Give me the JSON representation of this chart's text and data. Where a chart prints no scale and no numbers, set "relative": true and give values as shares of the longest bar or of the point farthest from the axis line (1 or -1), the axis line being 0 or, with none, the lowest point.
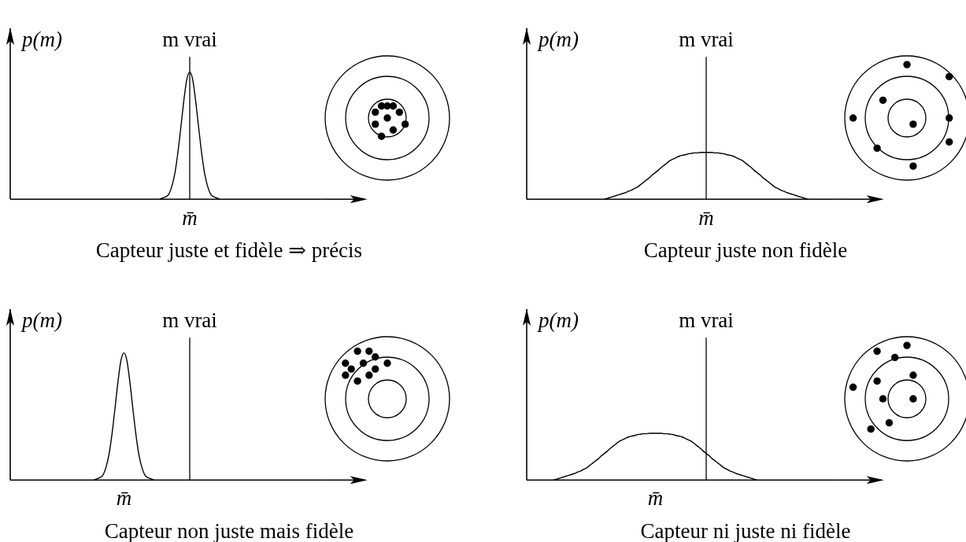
{
  "chart_data": [
    {
      "type": "line",
      "title": "Capteur juste et fidèle ⇒ précis",
      "ylabel": "p(m)",
      "relative": true,
      "marker": "none",
      "line_style": "solid",
      "annotations": [
        "m vrai",
        "m̄"
      ],
      "categories": [
        null,
        null,
        null,
        null,
        null,
        null,
        null,
        null,
        null,
        null,
        null,
        null,
        null,
        null,
        null,
        null,
        null,
        null,
        null,
        null,
        null,
        null,
        null,
        null,
        null,
        null,
        null,
        null,
        null,
        null,
        null,
        null,
        null,
        null,
        null,
        null,
        null,
        null,
        null,
        null,
        null,
        null,
        null,
        null,
        null,
        null,
        null,
        null,
        null,
        null,
        null,
        null,
        null,
        null,
        null,
        null,
        null,
        null,
        null,
        null,
        null,
        null,
        null,
        null,
        null,
        null,
        null,
        null,
        null,
        null,
        null,
        null,
        null,
        null,
        null,
        null,
        null,
        null,
        null,
        null,
        null,
        null,
        null,
        null,
        null,
        null,
        null,
        null,
        null,
        null,
        null,
        null,
        null,
        null,
        null,
        null,
        null,
        null,
        null,
        null,
        null,
        null,
        null,
        null,
        null
      ],
      "series": [
        {
          "color": "#000000",
          "values": [
            null,
            null,
            null,
            null,
            null,
            null,
            null,
            null,
            null,
            null,
            null,
            null,
            null,
            null,
            null,
            null,
            null,
            null,
            null,
            null,
            null,
            null,
            null,
            null,
            null,
            null,
            null,
            null,
            null,
            null,
            null,
            null,
            null,
            null,
            null,
            null,
            null,
            null,
            null,
            null,
            null,
            null,
            null,
            null,
            null,
            null,
            null,
            null,
            null,
            null,
            0,
            0.01,
            0.02,
            0.04,
            0.1,
            0.2,
            0.36,
            0.56,
            0.77,
            0.94,
            1,
            0.94,
            0.77,
            0.56,
            0.36,
            0.2,
            0.1,
            0.04,
            0.02,
            0.01,
            0,
            null,
            null,
            null,
            null,
            null,
            null,
            null,
            null,
            null,
            null,
            null,
            null,
            null,
            null,
            null,
            null,
            null,
            null,
            null,
            null,
            null,
            null,
            null,
            null,
            null,
            null,
            null,
            null,
            null,
            null,
            null,
            null,
            null,
            null
          ]
        }
      ]
    },
    {
      "type": "line",
      "title": "Capteur juste non fidèle",
      "ylabel": "p(m)",
      "relative": true,
      "marker": "none",
      "line_style": "solid",
      "annotations": [
        "m vrai",
        "m̄"
      ],
      "categories": [
        null,
        null,
        null,
        null,
        null,
        null,
        null,
        null,
        null,
        null,
        null,
        null,
        null,
        null,
        null,
        null,
        null,
        null,
        null,
        null,
        null,
        null,
        null,
        null,
        null,
        null,
        null,
        null,
        null,
        null,
        null,
        null,
        null,
        null,
        null,
        null,
        null,
        null,
        null,
        null,
        null,
        null,
        null,
        null,
        null,
        null,
        null,
        null,
        null,
        null,
        null,
        null,
        null,
        null,
        null,
        null,
        null,
        null,
        null,
        null,
        null,
        null,
        null,
        null,
        null,
        null,
        null,
        null,
        null,
        null,
        null,
        null,
        null,
        null,
        null,
        null,
        null,
        null,
        null,
        null,
        null,
        null,
        null,
        null,
        null,
        null,
        null,
        null,
        null,
        null,
        null,
        null,
        null,
        null,
        null,
        null,
        null,
        null,
        null,
        null,
        null,
        null,
        null,
        null,
        null
      ],
      "series": [
        {
          "color": "#000000",
          "values": [
            null,
            null,
            null,
            null,
            null,
            null,
            null,
            null,
            null,
            null,
            null,
            null,
            null,
            null,
            null,
            null,
            null,
            null,
            null,
            null,
            null,
            null,
            null,
            null,
            null,
            null,
            0,
            0.02,
            0.04,
            0.06,
            0.08,
            0.1,
            0.12,
            0.14,
            0.17,
            0.19,
            0.23,
            0.26,
            0.31,
            0.36,
            0.41,
            0.46,
            0.52,
            0.57,
            0.62,
            0.68,
            0.73,
            0.78,
            0.83,
            0.86,
            0.89,
            0.92,
            0.94,
            0.95,
            0.97,
            0.98,
            0.99,
            0.99,
            1,
            1,
            1,
            1,
            1,
            0.99,
            0.99,
            0.98,
            0.97,
            0.95,
            0.94,
            0.92,
            0.89,
            0.86,
            0.83,
            0.78,
            0.73,
            0.68,
            0.62,
            0.57,
            0.52,
            0.46,
            0.41,
            0.36,
            0.31,
            0.26,
            0.23,
            0.19,
            0.17,
            0.14,
            0.12,
            0.1,
            0.08,
            0.06,
            0.04,
            0.02,
            0,
            null,
            null,
            null,
            null,
            null,
            null,
            null,
            null,
            null,
            null
          ]
        }
      ]
    },
    {
      "type": "line",
      "title": "Capteur non juste mais fidèle",
      "ylabel": "p(m)",
      "relative": true,
      "marker": "none",
      "line_style": "solid",
      "annotations": [
        "m vrai",
        "m̄"
      ],
      "categories": [
        null,
        null,
        null,
        null,
        null,
        null,
        null,
        null,
        null,
        null,
        null,
        null,
        null,
        null,
        null,
        null,
        null,
        null,
        null,
        null,
        null,
        null,
        null,
        null,
        null,
        null,
        null,
        null,
        null,
        null,
        null,
        null,
        null,
        null,
        null,
        null,
        null,
        null,
        null,
        null,
        null,
        null,
        null,
        null,
        null,
        null,
        null,
        null,
        null,
        null,
        null,
        null,
        null,
        null,
        null,
        null,
        null,
        null,
        null,
        null,
        null,
        null,
        null,
        null,
        null,
        null,
        null,
        null,
        null,
        null,
        null,
        null,
        null,
        null,
        null,
        null,
        null,
        null,
        null,
        null,
        null,
        null,
        null,
        null,
        null,
        null,
        null,
        null,
        null,
        null,
        null,
        null,
        null,
        null,
        null,
        null,
        null,
        null,
        null,
        null,
        null,
        null,
        null,
        null,
        null
      ],
      "series": [
        {
          "color": "#000000",
          "values": [
            null,
            null,
            null,
            null,
            null,
            null,
            null,
            null,
            null,
            null,
            null,
            null,
            null,
            null,
            null,
            null,
            null,
            null,
            null,
            null,
            null,
            null,
            null,
            null,
            null,
            null,
            null,
            null,
            0,
            0.01,
            0.02,
            0.04,
            0.1,
            0.2,
            0.36,
            0.56,
            0.77,
            0.94,
            1,
            0.94,
            0.77,
            0.56,
            0.36,
            0.2,
            0.1,
            0.04,
            0.02,
            0.01,
            0,
            null,
            null,
            null,
            null,
            null,
            null,
            null,
            null,
            null,
            null,
            null,
            null,
            null,
            null,
            null,
            null,
            null,
            null,
            null,
            null,
            null,
            null,
            null,
            null,
            null,
            null,
            null,
            null,
            null,
            null,
            null,
            null,
            null,
            null,
            null,
            null,
            null,
            null,
            null,
            null,
            null,
            null,
            null,
            null,
            null,
            null,
            null,
            null,
            null,
            null,
            null,
            null,
            null,
            null,
            null,
            null
          ]
        }
      ]
    },
    {
      "type": "line",
      "title": "Capteur ni juste ni fidèle",
      "ylabel": "p(m)",
      "relative": true,
      "marker": "none",
      "line_style": "solid",
      "annotations": [
        "m vrai",
        "m̄"
      ],
      "categories": [
        null,
        null,
        null,
        null,
        null,
        null,
        null,
        null,
        null,
        null,
        null,
        null,
        null,
        null,
        null,
        null,
        null,
        null,
        null,
        null,
        null,
        null,
        null,
        null,
        null,
        null,
        null,
        null,
        null,
        null,
        null,
        null,
        null,
        null,
        null,
        null,
        null,
        null,
        null,
        null,
        null,
        null,
        null,
        null,
        null,
        null,
        null,
        null,
        null,
        null,
        null,
        null,
        null,
        null,
        null,
        null,
        null,
        null,
        null,
        null,
        null,
        null,
        null,
        null,
        null,
        null,
        null,
        null,
        null,
        null,
        null,
        null,
        null,
        null,
        null,
        null,
        null,
        null,
        null,
        null,
        null,
        null,
        null,
        null,
        null,
        null,
        null,
        null,
        null,
        null,
        null,
        null,
        null,
        null,
        null,
        null,
        null,
        null,
        null,
        null,
        null,
        null,
        null,
        null,
        null
      ],
      "series": [
        {
          "color": "#000000",
          "values": [
            null,
            null,
            null,
            null,
            null,
            null,
            null,
            null,
            null,
            0,
            0.02,
            0.04,
            0.06,
            0.08,
            0.1,
            0.12,
            0.14,
            0.17,
            0.19,
            0.23,
            0.26,
            0.31,
            0.36,
            0.41,
            0.46,
            0.52,
            0.57,
            0.62,
            0.68,
            0.73,
            0.78,
            0.83,
            0.86,
            0.89,
            0.92,
            0.94,
            0.95,
            0.97,
            0.98,
            0.99,
            0.99,
            1,
            1,
            1,
            1,
            1,
            0.99,
            0.99,
            0.98,
            0.97,
            0.95,
            0.94,
            0.92,
            0.89,
            0.86,
            0.83,
            0.78,
            0.73,
            0.68,
            0.62,
            0.57,
            0.52,
            0.46,
            0.41,
            0.36,
            0.31,
            0.26,
            0.23,
            0.19,
            0.17,
            0.14,
            0.12,
            0.1,
            0.08,
            0.06,
            0.04,
            0.02,
            0,
            null,
            null,
            null,
            null,
            null,
            null,
            null,
            null,
            null,
            null,
            null,
            null,
            null,
            null,
            null,
            null,
            null,
            null,
            null,
            null,
            null,
            null,
            null,
            null,
            null,
            null,
            null
          ]
        }
      ]
    }
  ]
}
